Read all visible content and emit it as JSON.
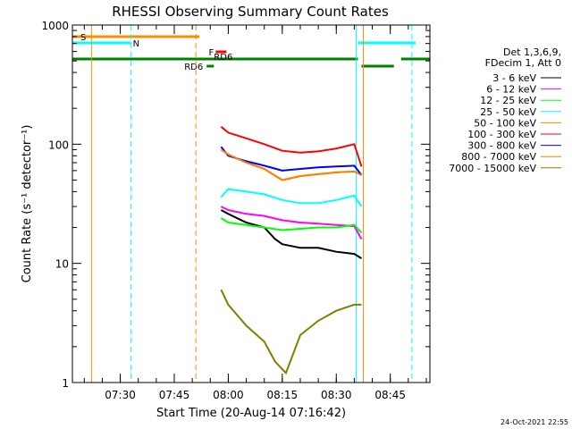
{
  "chart_data": {
    "type": "line",
    "title": "RHESSI Observing Summary Count Rates",
    "xlabel": "Start Time (20-Aug-14 07:16:42)",
    "ylabel": "Count Rate (s⁻¹ detector⁻¹)",
    "yscale": "log",
    "xlim": [
      "07:16:42",
      "08:56:00"
    ],
    "ylim": [
      1,
      1000
    ],
    "x_ticks": [
      "07:30",
      "07:45",
      "08:00",
      "08:15",
      "08:30",
      "08:45"
    ],
    "y_ticks": [
      "1",
      "10",
      "100",
      "1000"
    ],
    "legend_header": [
      "Det 1,3,6,9,",
      "FDecim 1, Att 0"
    ],
    "legend_position": "right",
    "timestamp": "24-Oct-2021 22:55",
    "series": [
      {
        "name": "3 - 6 keV",
        "color": "#000000",
        "x": [
          "07:58",
          "08:00",
          "08:05",
          "08:10",
          "08:13",
          "08:15",
          "08:20",
          "08:25",
          "08:30",
          "08:35",
          "08:37"
        ],
        "y": [
          28,
          26,
          22,
          20,
          16,
          14.5,
          13.5,
          13.5,
          12.5,
          12,
          11
        ]
      },
      {
        "name": "6 - 12 keV",
        "color": "#ff00ff",
        "x": [
          "07:58",
          "08:00",
          "08:05",
          "08:10",
          "08:15",
          "08:20",
          "08:25",
          "08:30",
          "08:35",
          "08:37"
        ],
        "y": [
          30,
          28,
          26,
          25,
          23,
          22,
          21.5,
          21,
          20.5,
          16
        ]
      },
      {
        "name": "12 - 25 keV",
        "color": "#00ff00",
        "x": [
          "07:58",
          "08:00",
          "08:05",
          "08:10",
          "08:15",
          "08:20",
          "08:25",
          "08:30",
          "08:35",
          "08:37"
        ],
        "y": [
          24,
          22,
          21,
          20,
          19,
          19.5,
          20,
          20,
          21,
          18
        ]
      },
      {
        "name": "25 - 50 keV",
        "color": "#00ffff",
        "x": [
          "07:58",
          "08:00",
          "08:05",
          "08:10",
          "08:15",
          "08:20",
          "08:25",
          "08:30",
          "08:35",
          "08:37"
        ],
        "y": [
          36,
          42,
          40,
          38,
          34,
          32,
          32,
          34,
          37,
          30
        ]
      },
      {
        "name": "50 - 100 keV",
        "color": "#ff8c00",
        "x": [
          "07:58",
          "08:00",
          "08:05",
          "08:10",
          "08:15",
          "08:20",
          "08:25",
          "08:30",
          "08:35",
          "08:37"
        ],
        "y": [
          90,
          82,
          70,
          62,
          50,
          54,
          56,
          58,
          59,
          55
        ]
      },
      {
        "name": "100 - 300 keV",
        "color": "#ff0000",
        "x": [
          "07:58",
          "08:00",
          "08:05",
          "08:10",
          "08:15",
          "08:20",
          "08:25",
          "08:30",
          "08:35",
          "08:37"
        ],
        "y": [
          140,
          125,
          112,
          100,
          88,
          85,
          87,
          92,
          100,
          65
        ]
      },
      {
        "name": "300 - 800 keV",
        "color": "#0000ff",
        "x": [
          "07:58",
          "08:00",
          "08:05",
          "08:10",
          "08:15",
          "08:20",
          "08:25",
          "08:30",
          "08:35",
          "08:37"
        ],
        "y": [
          95,
          80,
          72,
          66,
          60,
          62,
          64,
          65,
          66,
          55
        ]
      },
      {
        "name": "800 - 7000 keV",
        "color": "#ff8000",
        "x": [
          "07:58",
          "08:00",
          "08:05",
          "08:10",
          "08:15",
          "08:20",
          "08:25",
          "08:30",
          "08:35",
          "08:37"
        ],
        "y": [
          90,
          82,
          70,
          62,
          50,
          54,
          56,
          58,
          59,
          55
        ]
      },
      {
        "name": "7000 - 15000 keV",
        "color": "#808000",
        "x": [
          "07:58",
          "08:00",
          "08:05",
          "08:10",
          "08:13",
          "08:16",
          "08:20",
          "08:25",
          "08:30",
          "08:35",
          "08:37"
        ],
        "y": [
          6,
          4.5,
          3,
          2.2,
          1.5,
          1.2,
          2.5,
          3.3,
          4,
          4.5,
          4.5
        ]
      }
    ],
    "event_bars": [
      {
        "label": "S",
        "color": "#ff8c00",
        "start": "07:16:42",
        "end": "07:52:00",
        "level": "S"
      },
      {
        "label": "N",
        "color": "#00ffff",
        "start": "07:16:42",
        "end": "07:33:00",
        "level": "N"
      },
      {
        "label": "",
        "color": "#00ffff",
        "start": "08:36:00",
        "end": "08:52:00",
        "level": "N"
      },
      {
        "label": "F",
        "color": "#ff0000",
        "start": "07:56:30",
        "end": "07:59:30",
        "level": "F"
      },
      {
        "label": "RD6",
        "color": "#008000",
        "start": "07:16:42",
        "end": "08:36:00",
        "level": "RD"
      },
      {
        "label": "RD6",
        "color": "#008000",
        "start": "07:54:00",
        "end": "07:56:00",
        "level": "RD2"
      },
      {
        "label": "",
        "color": "#008000",
        "start": "08:37:00",
        "end": "08:46:00",
        "level": "RD2"
      },
      {
        "label": "",
        "color": "#008000",
        "start": "08:48:00",
        "end": "08:56:00",
        "level": "RD"
      }
    ],
    "vertical_lines": [
      {
        "time": "07:22:00",
        "color": "#ff8c00",
        "style": "solid"
      },
      {
        "time": "07:33:00",
        "color": "#00ffff",
        "style": "dashed"
      },
      {
        "time": "07:51:00",
        "color": "#ff8c00",
        "style": "dashed"
      },
      {
        "time": "08:35:30",
        "color": "#00ffff",
        "style": "solid"
      },
      {
        "time": "08:37:30",
        "color": "#ff8c00",
        "style": "solid"
      },
      {
        "time": "08:51:00",
        "color": "#00ffff",
        "style": "dashed"
      }
    ]
  }
}
